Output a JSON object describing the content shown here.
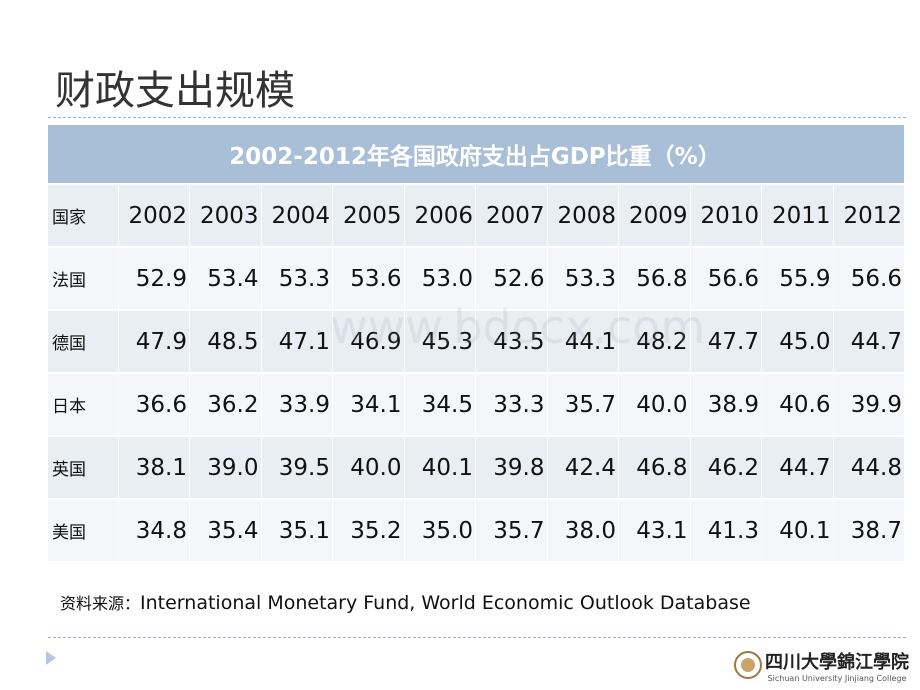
{
  "header": {
    "title": "财政支出规模"
  },
  "table": {
    "caption": "2002-2012年各国政府支出占GDP比重（%）",
    "columns": [
      "国家",
      "2002",
      "2003",
      "2004",
      "2005",
      "2006",
      "2007",
      "2008",
      "2009",
      "2010",
      "2011",
      "2012"
    ],
    "rows": [
      [
        "法国",
        "52.9",
        "53.4",
        "53.3",
        "53.6",
        "53.0",
        "52.6",
        "53.3",
        "56.8",
        "56.6",
        "55.9",
        "56.6"
      ],
      [
        "德国",
        "47.9",
        "48.5",
        "47.1",
        "46.9",
        "45.3",
        "43.5",
        "44.1",
        "48.2",
        "47.7",
        "45.0",
        "44.7"
      ],
      [
        "日本",
        "36.6",
        "36.2",
        "33.9",
        "34.1",
        "34.5",
        "33.3",
        "35.7",
        "40.0",
        "38.9",
        "40.6",
        "39.9"
      ],
      [
        "英国",
        "38.1",
        "39.0",
        "39.5",
        "40.0",
        "40.1",
        "39.8",
        "42.4",
        "46.8",
        "46.2",
        "44.7",
        "44.8"
      ],
      [
        "美国",
        "34.8",
        "35.4",
        "35.1",
        "35.2",
        "35.0",
        "35.7",
        "38.0",
        "43.1",
        "41.3",
        "40.1",
        "38.7"
      ]
    ]
  },
  "source": {
    "label": "资料来源：",
    "text": "International Monetary Fund, World Economic Outlook Database"
  },
  "watermark": "www.bdocx.com",
  "logo": {
    "name": "四川大學錦江學院",
    "english": "Sichuan University Jinjiang College"
  }
}
